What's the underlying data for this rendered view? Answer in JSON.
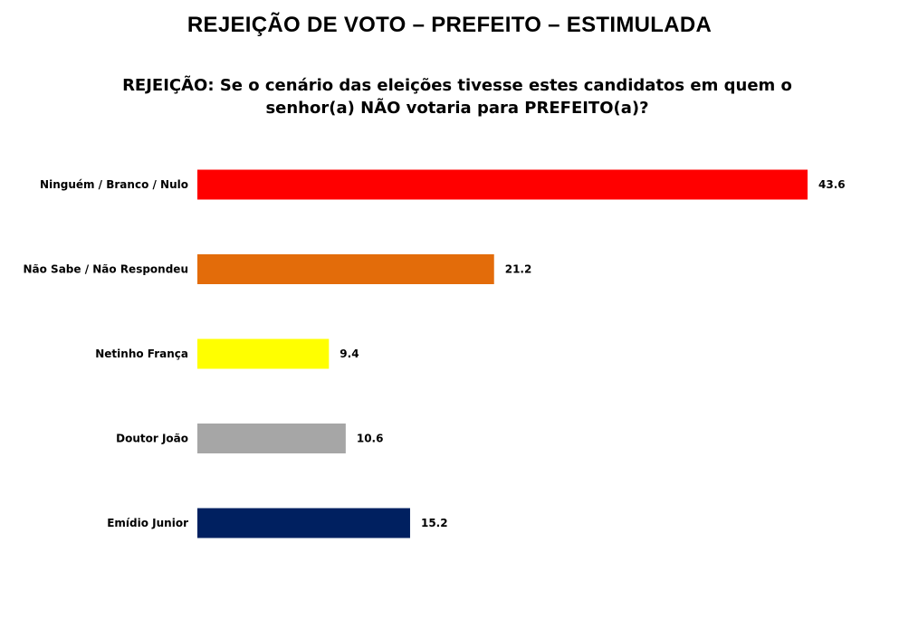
{
  "chart_data": {
    "type": "bar",
    "orientation": "horizontal",
    "title": "REJEIÇÃO DE VOTO – PREFEITO – ESTIMULADA",
    "subtitle_lines": [
      "REJEIÇÃO: Se o cenário das eleições tivesse estes candidatos em quem o",
      "senhor(a) NÃO votaria para PREFEITO(a)?"
    ],
    "categories": [
      "Ninguém / Branco / Nulo",
      "Não Sabe / Não Respondeu",
      "Netinho França",
      "Doutor João",
      "Emídio Junior"
    ],
    "values": [
      43.6,
      21.2,
      9.4,
      10.6,
      15.2
    ],
    "value_labels": [
      "43.6",
      "21.2",
      "9.4",
      "10.6",
      "15.2"
    ],
    "colors": [
      "#ff0000",
      "#e36c0a",
      "#ffff00",
      "#a6a6a6",
      "#002060"
    ],
    "xlim": [
      0,
      43.6
    ],
    "grid": false,
    "legend": "none"
  }
}
